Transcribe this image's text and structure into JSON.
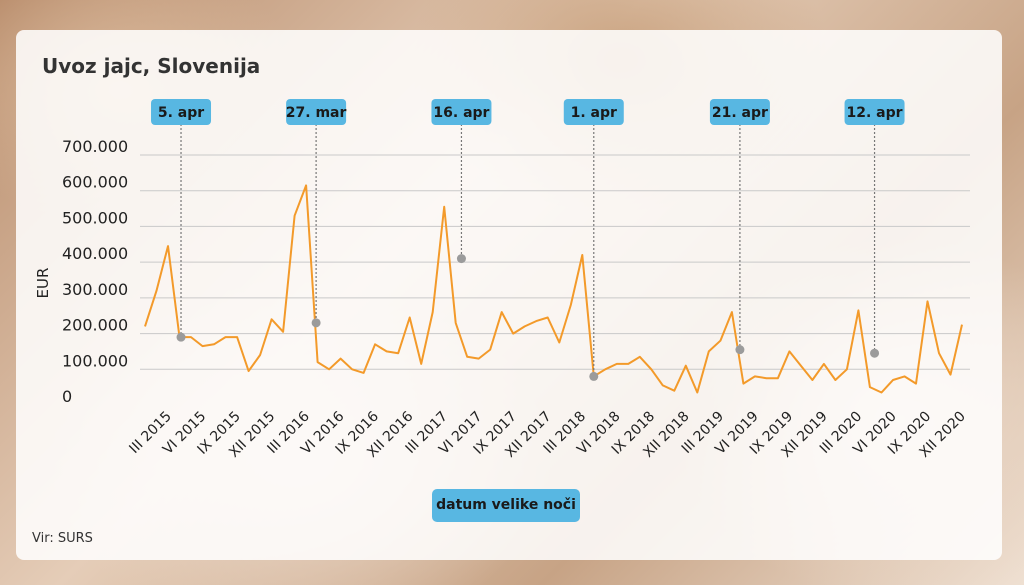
{
  "page": {
    "source": "Vir: SURS"
  },
  "chart_data": {
    "type": "line",
    "title": "Uvoz jajc, Slovenija",
    "ylabel": "EUR",
    "xlabel": "",
    "ylim": [
      0,
      700000
    ],
    "yticks": [
      {
        "value": 0,
        "label": "0"
      },
      {
        "value": 100000,
        "label": "100.000"
      },
      {
        "value": 200000,
        "label": "200.000"
      },
      {
        "value": 300000,
        "label": "300.000"
      },
      {
        "value": 400000,
        "label": "400.000"
      },
      {
        "value": 500000,
        "label": "500.000"
      },
      {
        "value": 600000,
        "label": "600.000"
      },
      {
        "value": 700000,
        "label": "700.000"
      }
    ],
    "grid": true,
    "line_color": "#f39a2a",
    "callout_color": "#58b7e2",
    "marker_color": "#9b9b9b",
    "x_ticks": [
      {
        "index": 2,
        "label": "III 2015"
      },
      {
        "index": 5,
        "label": "VI 2015"
      },
      {
        "index": 8,
        "label": "IX 2015"
      },
      {
        "index": 11,
        "label": "XII 2015"
      },
      {
        "index": 14,
        "label": "III 2016"
      },
      {
        "index": 17,
        "label": "VI 2016"
      },
      {
        "index": 20,
        "label": "IX 2016"
      },
      {
        "index": 23,
        "label": "XII 2016"
      },
      {
        "index": 26,
        "label": "III 2017"
      },
      {
        "index": 29,
        "label": "VI 2017"
      },
      {
        "index": 32,
        "label": "IX 2017"
      },
      {
        "index": 35,
        "label": "XII 2017"
      },
      {
        "index": 38,
        "label": "III 2018"
      },
      {
        "index": 41,
        "label": "VI 2018"
      },
      {
        "index": 44,
        "label": "IX 2018"
      },
      {
        "index": 47,
        "label": "XII 2018"
      },
      {
        "index": 50,
        "label": "III 2019"
      },
      {
        "index": 53,
        "label": "VI 2019"
      },
      {
        "index": 56,
        "label": "IX 2019"
      },
      {
        "index": 59,
        "label": "XII 2019"
      },
      {
        "index": 62,
        "label": "III 2020"
      },
      {
        "index": 65,
        "label": "VI 2020"
      },
      {
        "index": 68,
        "label": "IX 2020"
      },
      {
        "index": 71,
        "label": "XII 2020"
      }
    ],
    "series": [
      {
        "values": [
          220000,
          320000,
          445000,
          190000,
          190000,
          165000,
          170000,
          190000,
          190000,
          95000,
          140000,
          240000,
          205000,
          530000,
          615000,
          120000,
          100000,
          130000,
          100000,
          90000,
          170000,
          150000,
          145000,
          245000,
          115000,
          260000,
          555000,
          230000,
          135000,
          130000,
          155000,
          260000,
          200000,
          220000,
          235000,
          245000,
          175000,
          280000,
          420000,
          80000,
          100000,
          115000,
          115000,
          135000,
          100000,
          55000,
          40000,
          110000,
          35000,
          150000,
          180000,
          260000,
          60000,
          80000,
          75000,
          75000,
          150000,
          110000,
          70000,
          115000,
          70000,
          100000,
          265000,
          50000,
          35000,
          70000,
          80000,
          60000,
          290000,
          145000,
          85000,
          225000
        ]
      }
    ],
    "easter_markers": [
      {
        "label": "5. apr",
        "index": 3.13,
        "value": 190000
      },
      {
        "label": "27. mar",
        "index": 14.87,
        "value": 230000
      },
      {
        "label": "16. apr",
        "index": 27.5,
        "value": 410000
      },
      {
        "label": "1. apr",
        "index": 39.0,
        "value": 80000
      },
      {
        "label": "21. apr",
        "index": 51.7,
        "value": 155000
      },
      {
        "label": "12. apr",
        "index": 63.4,
        "value": 145000
      }
    ],
    "legend_label": "datum velike noči"
  }
}
